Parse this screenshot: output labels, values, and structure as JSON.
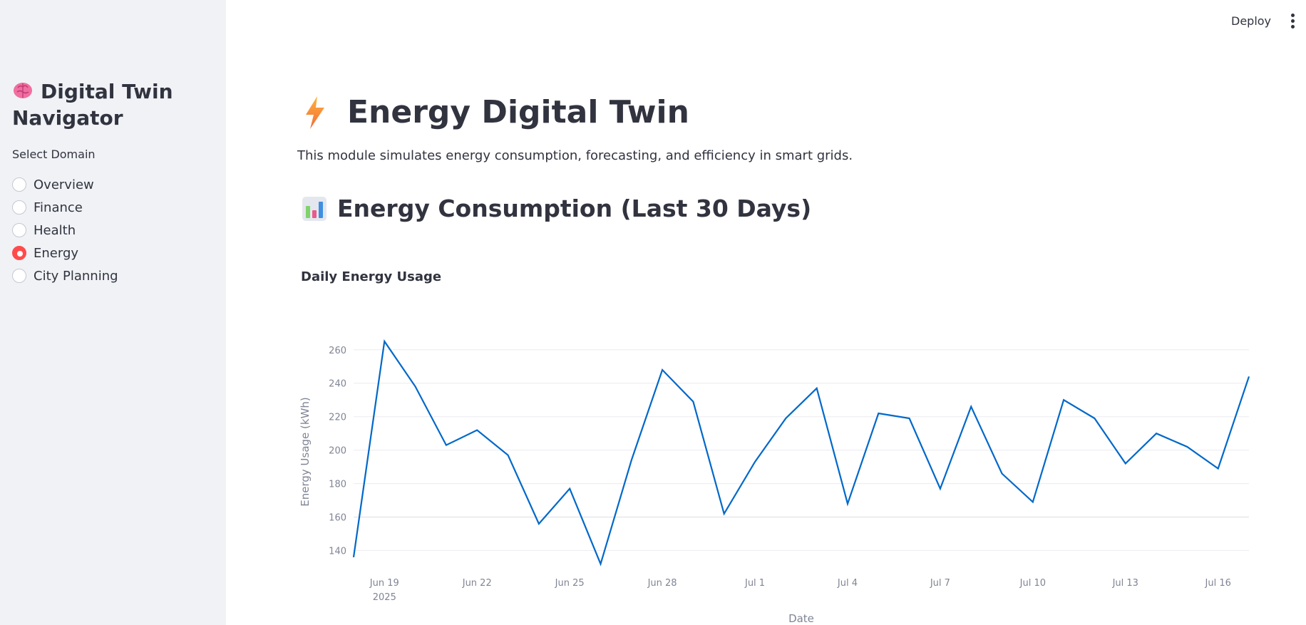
{
  "sidebar": {
    "title": "Digital Twin Navigator",
    "title_icon": "brain-icon",
    "radio_label": "Select Domain",
    "options": [
      "Overview",
      "Finance",
      "Health",
      "Energy",
      "City Planning"
    ],
    "selected": "Energy"
  },
  "header": {
    "deploy_label": "Deploy",
    "menu_icon": "vertical-dots-icon"
  },
  "main": {
    "title": "Energy Digital Twin",
    "title_icon": "lightning-icon",
    "description": "This module simulates energy consumption, forecasting, and efficiency in smart grids.",
    "section_title": "Energy Consumption (Last 30 Days)",
    "section_icon": "bar-chart-icon",
    "chart_title": "Daily Energy Usage"
  },
  "colors": {
    "accent": "#ff4b4b",
    "line": "#0068c9",
    "sidebar_bg": "#f0f2f6",
    "text": "#31333f"
  },
  "chart_data": {
    "type": "line",
    "title": "Daily Energy Usage",
    "xlabel": "Date",
    "ylabel": "Energy Usage (kWh)",
    "x": [
      "2025-06-18",
      "2025-06-19",
      "2025-06-20",
      "2025-06-21",
      "2025-06-22",
      "2025-06-23",
      "2025-06-24",
      "2025-06-25",
      "2025-06-26",
      "2025-06-27",
      "2025-06-28",
      "2025-06-29",
      "2025-06-30",
      "2025-07-01",
      "2025-07-02",
      "2025-07-03",
      "2025-07-04",
      "2025-07-05",
      "2025-07-06",
      "2025-07-07",
      "2025-07-08",
      "2025-07-09",
      "2025-07-10",
      "2025-07-11",
      "2025-07-12",
      "2025-07-13",
      "2025-07-14",
      "2025-07-15",
      "2025-07-16",
      "2025-07-17"
    ],
    "series": [
      {
        "values": [
          136,
          265,
          238,
          203,
          212,
          197,
          156,
          177,
          132,
          194,
          248,
          229,
          162,
          193,
          219,
          237,
          168,
          222,
          219,
          177,
          226,
          186,
          169,
          230,
          219,
          192,
          210,
          202,
          189,
          244
        ]
      }
    ],
    "ylim": [
      130,
      268
    ],
    "yticks": [
      140,
      160,
      180,
      200,
      220,
      240,
      260
    ],
    "xticks": [
      {
        "date": "2025-06-19",
        "label": "Jun 19",
        "sublabel": "2025"
      },
      {
        "date": "2025-06-22",
        "label": "Jun 22"
      },
      {
        "date": "2025-06-25",
        "label": "Jun 25"
      },
      {
        "date": "2025-06-28",
        "label": "Jun 28"
      },
      {
        "date": "2025-07-01",
        "label": "Jul 1"
      },
      {
        "date": "2025-07-04",
        "label": "Jul 4"
      },
      {
        "date": "2025-07-07",
        "label": "Jul 7"
      },
      {
        "date": "2025-07-10",
        "label": "Jul 10"
      },
      {
        "date": "2025-07-13",
        "label": "Jul 13"
      },
      {
        "date": "2025-07-16",
        "label": "Jul 16"
      }
    ],
    "grid": true,
    "legend": "none"
  }
}
